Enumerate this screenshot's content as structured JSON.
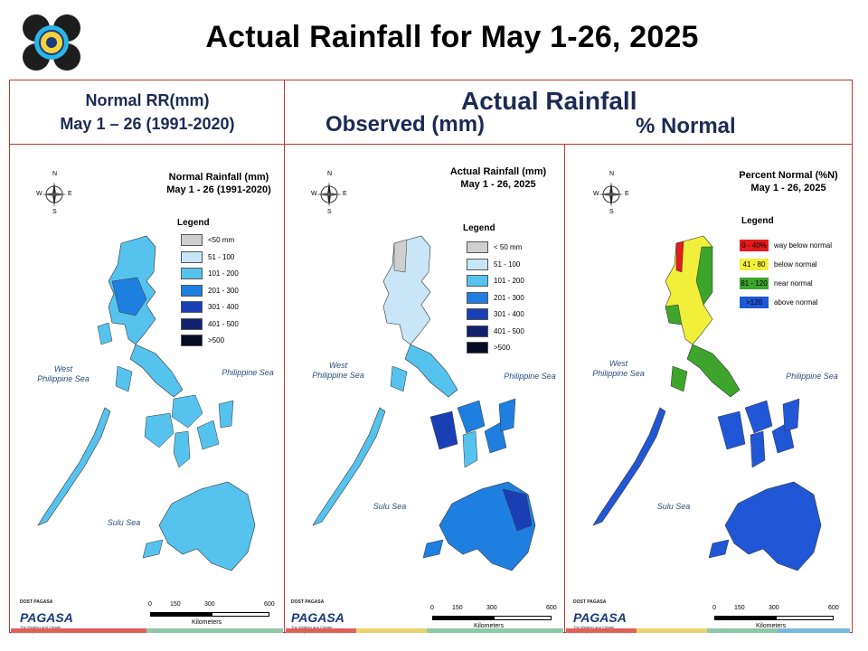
{
  "title": "Actual Rainfall for May 1-26, 2025",
  "header": {
    "normal_line1": "Normal RR(mm)",
    "normal_line2": "May 1 – 26 (1991-2020)",
    "actual": "Actual Rainfall",
    "observed": "Observed (mm)",
    "percent": "% Normal"
  },
  "colors": {
    "frame": "#c0392b",
    "lt50": "#cfcfcf",
    "r51_100": "#c8e6f8",
    "r101_200": "#55c3ee",
    "r201_300": "#1f7fe0",
    "r301_400": "#1a3fb5",
    "r401_500": "#10216e",
    "r500": "#050a26",
    "way_below": "#e41a1c",
    "below": "#f2ef3a",
    "near": "#3ea52c",
    "above": "#2057d6"
  },
  "panels": [
    {
      "map_title_1": "Normal Rainfall (mm)",
      "map_title_2": "May 1 - 26 (1991-2020)",
      "legend_title": "Legend",
      "legend": [
        "<50 mm",
        "51 - 100",
        "101 - 200",
        "201 - 300",
        "301 - 400",
        "401 - 500",
        ">500"
      ],
      "sea_west_1": "West",
      "sea_west_2": "Philippine Sea",
      "sea_east": "Philippine Sea",
      "sea_sulu": "Sulu Sea"
    },
    {
      "map_title_1": "Actual Rainfall (mm)",
      "map_title_2": "May 1 - 26, 2025",
      "legend_title": "Legend",
      "legend": [
        "< 50 mm",
        "51 - 100",
        "101 - 200",
        "201 - 300",
        "301 - 400",
        "401 - 500",
        ">500"
      ],
      "sea_west_1": "West",
      "sea_west_2": "Philippine Sea",
      "sea_east": "Philippine Sea",
      "sea_sulu": "Sulu Sea"
    },
    {
      "map_title_1": "Percent Normal (%N)",
      "map_title_2": "May 1 - 26, 2025",
      "legend_title": "Legend",
      "legend": [
        {
          "range": "0 - 40%",
          "label": "way below normal"
        },
        {
          "range": "41 - 80",
          "label": "below normal"
        },
        {
          "range": "81 - 120",
          "label": "near normal"
        },
        {
          "range": ">120",
          "label": "above normal"
        }
      ],
      "sea_west_1": "West",
      "sea_west_2": "Philippine Sea",
      "sea_east": "Philippine Sea",
      "sea_sulu": "Sulu Sea"
    }
  ],
  "compass": {
    "n": "N",
    "s": "S",
    "e": "E",
    "w": "W"
  },
  "scale": {
    "ticks": [
      "0",
      "150",
      "300",
      "600"
    ],
    "unit": "Kilometers"
  },
  "footer": {
    "dost": "DOST PAGASA",
    "name": "PAGASA",
    "tagline": "The Weather and Climate Authority"
  }
}
